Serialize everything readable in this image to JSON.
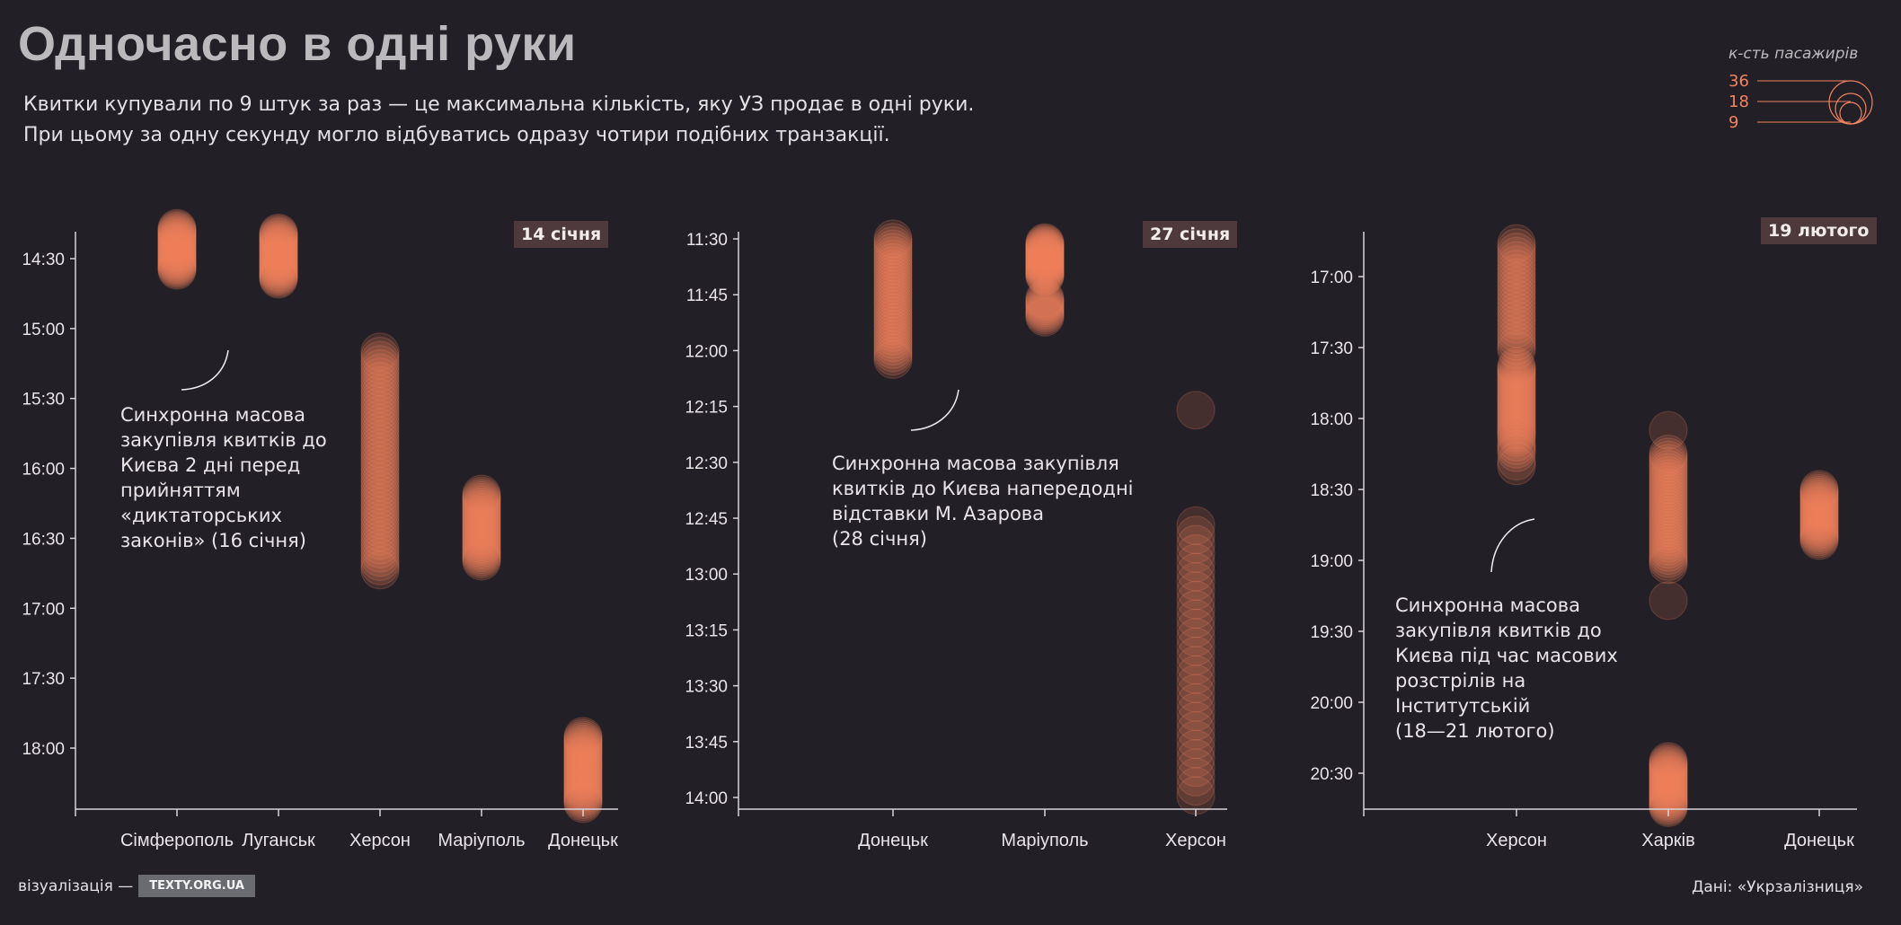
{
  "header": {
    "title": "Одночасно в одні руки",
    "subtitle_lines": [
      "Квитки купували по 9 штук за раз — це максимальна кількість, яку УЗ продає в одні руки.",
      "При цьому за одну секунду могло відбуватись одразу чотири подібних транзакції."
    ]
  },
  "legend": {
    "title": "к-сть пасажирів",
    "values": [
      36,
      18,
      9
    ],
    "labels": [
      "36",
      "18",
      "9"
    ]
  },
  "colors": {
    "background": "#231f26",
    "bubble": "#f0835f",
    "axis": "#d8d4d8",
    "badge": "#4e3a3c"
  },
  "annotations": [
    [
      "Синхронна масова",
      "закупівля квитків до",
      "Києва 2 дні перед",
      "прийняттям",
      "«диктаторських",
      "законів» (16 січня)"
    ],
    [
      "Синхронна масова закупівля",
      "квитків до Києва напередодні",
      "відставки М. Азарова",
      "(28 січня)"
    ],
    [
      "Синхронна масова",
      "закупівля квитків до",
      "Києва під час масових",
      "розстрілів на",
      "Інститутській",
      "(18—21 лютого)"
    ]
  ],
  "credit": {
    "label": "візуалізація —",
    "badge": "TEXTY.ORG.UA"
  },
  "source": "Дані: «Укрзалізниця»",
  "chart_data": [
    {
      "type": "scatter",
      "date_label": "14 січня",
      "x_categories": [
        "Сімферополь",
        "Луганськ",
        "Херсон",
        "Маріуполь",
        "Донецьк"
      ],
      "y_ticks": [
        "14:30",
        "15:00",
        "15:30",
        "16:00",
        "16:30",
        "17:00",
        "17:30",
        "18:00"
      ],
      "y_range": [
        "14:20",
        "18:28"
      ],
      "grid": false,
      "clusters": [
        {
          "city": "Сімферополь",
          "start": "14:17",
          "end": "14:35",
          "step_min": 0.6
        },
        {
          "city": "Луганськ",
          "start": "14:19",
          "end": "14:39",
          "step_min": 0.6
        },
        {
          "city": "Херсон",
          "start": "15:10",
          "end": "16:45",
          "step_min": 1.8
        },
        {
          "city": "Маріуполь",
          "start": "16:11",
          "end": "16:40",
          "step_min": 0.9
        },
        {
          "city": "Донецьк",
          "start": "17:55",
          "end": "18:24",
          "step_min": 0.8
        }
      ]
    },
    {
      "type": "scatter",
      "date_label": "27 січня",
      "x_categories": [
        "Донецьк",
        "Маріуполь",
        "Херсон"
      ],
      "y_ticks": [
        "11:30",
        "11:45",
        "12:00",
        "12:15",
        "12:30",
        "12:45",
        "13:00",
        "13:15",
        "13:30",
        "13:45",
        "14:00"
      ],
      "y_range": [
        "11:30",
        "14:03"
      ],
      "grid": false,
      "clusters": [
        {
          "city": "Донецьк",
          "start": "11:30",
          "end": "12:03",
          "step_min": 0.9
        },
        {
          "city": "Маріуполь",
          "start": "11:31",
          "end": "11:40",
          "step_min": 0.3
        },
        {
          "city": "Маріуполь",
          "start": "11:46",
          "end": "11:51",
          "step_min": 0.5
        },
        {
          "city": "Херсон",
          "start": "12:16",
          "end": "12:16",
          "step_min": 1
        },
        {
          "city": "Херсон",
          "start": "12:47",
          "end": "14:01",
          "step_min": 2.5
        }
      ]
    },
    {
      "type": "scatter",
      "date_label": "19 лютого",
      "x_categories": [
        "Херсон",
        "Харків",
        "Донецьк"
      ],
      "y_ticks": [
        "17:00",
        "17:30",
        "18:00",
        "18:30",
        "19:00",
        "19:30",
        "20:00",
        "20:30"
      ],
      "y_range": [
        "16:47",
        "20:45"
      ],
      "grid": false,
      "clusters": [
        {
          "city": "Херсон",
          "start": "16:46",
          "end": "17:32",
          "step_min": 1.8
        },
        {
          "city": "Херсон",
          "start": "17:38",
          "end": "18:08",
          "step_min": 1.0
        },
        {
          "city": "Херсон",
          "start": "18:10",
          "end": "18:15",
          "step_min": 1.5
        },
        {
          "city": "Херсон",
          "start": "18:18",
          "end": "18:20",
          "step_min": 2
        },
        {
          "city": "Харків",
          "start": "18:05",
          "end": "18:05",
          "step_min": 1
        },
        {
          "city": "Харків",
          "start": "18:15",
          "end": "19:02",
          "step_min": 1.3
        },
        {
          "city": "Харків",
          "start": "19:17",
          "end": "19:17",
          "step_min": 1
        },
        {
          "city": "Харків",
          "start": "20:25",
          "end": "20:45",
          "step_min": 0.7
        },
        {
          "city": "Донецьк",
          "start": "18:30",
          "end": "18:52",
          "step_min": 0.8
        }
      ]
    }
  ]
}
